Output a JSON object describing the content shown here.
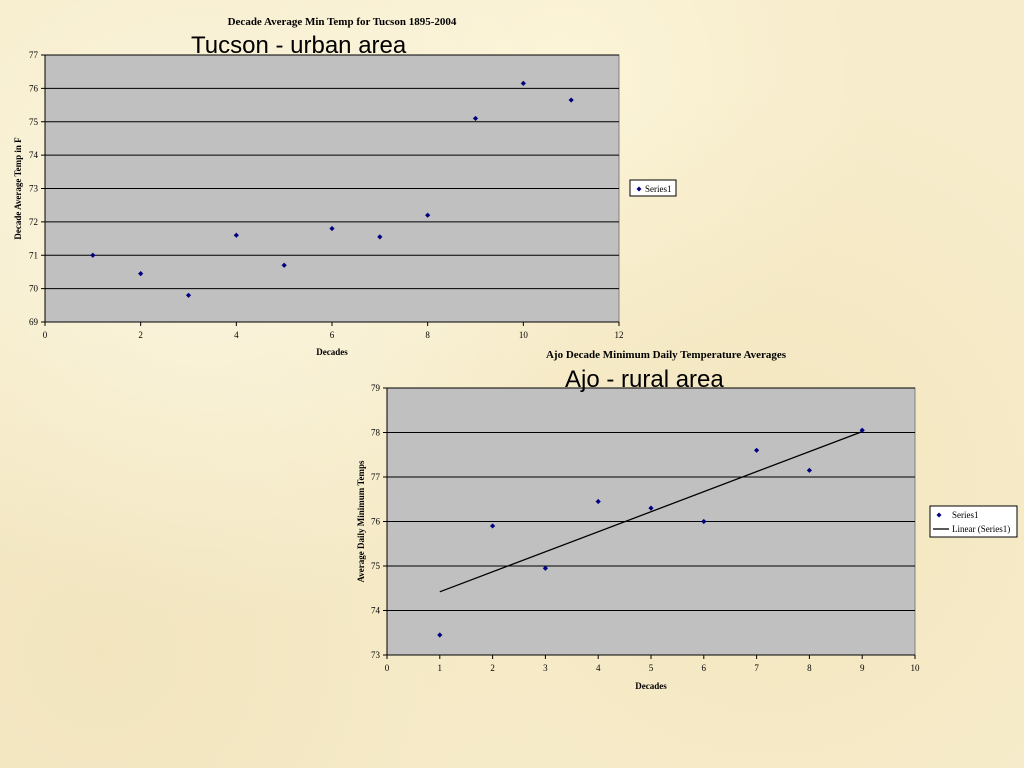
{
  "overlay_labels": {
    "chart1": "Tucson - urban area",
    "chart2": "Ajo - rural area"
  },
  "chart_data": [
    {
      "type": "scatter",
      "title": "Decade Average Min Temp for Tucson 1895-2004",
      "xlabel": "Decades",
      "ylabel": "Decade Average Temp in F",
      "xlim": [
        0,
        12
      ],
      "ylim": [
        69,
        77
      ],
      "xticks": [
        0,
        2,
        4,
        6,
        8,
        10,
        12
      ],
      "yticks": [
        69,
        70,
        71,
        72,
        73,
        74,
        75,
        76,
        77
      ],
      "grid": true,
      "legend_position": "right",
      "marker_color": "#000080",
      "plot_background": "#c0c0c0",
      "series": [
        {
          "name": "Series1",
          "x": [
            1,
            2,
            3,
            4,
            5,
            6,
            7,
            8,
            9,
            10,
            11
          ],
          "y": [
            71.0,
            70.45,
            69.8,
            71.6,
            70.7,
            71.8,
            71.55,
            72.2,
            75.1,
            76.15,
            75.65
          ]
        }
      ]
    },
    {
      "type": "scatter",
      "title": "Ajo Decade Minimum Daily Temperature Averages",
      "xlabel": "Decades",
      "ylabel": "Average Daily Minimum Temps",
      "xlim": [
        0,
        10
      ],
      "ylim": [
        73,
        79
      ],
      "xticks": [
        0,
        1,
        2,
        3,
        4,
        5,
        6,
        7,
        8,
        9,
        10
      ],
      "yticks": [
        73,
        74,
        75,
        76,
        77,
        78,
        79
      ],
      "grid": true,
      "legend_position": "right",
      "marker_color": "#000080",
      "plot_background": "#c0c0c0",
      "series": [
        {
          "name": "Series1",
          "x": [
            1,
            2,
            3,
            4,
            5,
            6,
            7,
            8,
            9
          ],
          "y": [
            73.45,
            75.9,
            74.95,
            76.45,
            76.3,
            76.0,
            77.6,
            77.15,
            78.05
          ]
        }
      ],
      "trendline": {
        "name": "Linear (Series1)",
        "x": [
          1,
          9
        ],
        "y": [
          74.42,
          78.02
        ]
      }
    }
  ]
}
